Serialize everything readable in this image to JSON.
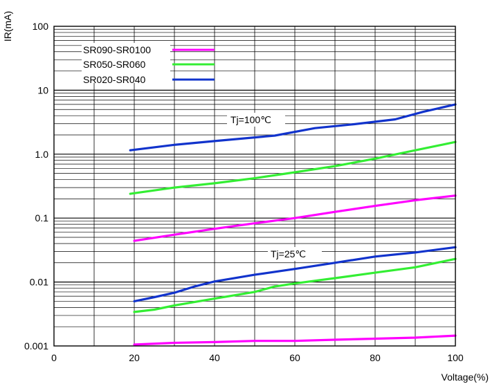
{
  "chart_data": {
    "type": "line",
    "xlabel": "Voltage(%)",
    "ylabel": "IR(mA)",
    "xlim": [
      0,
      100
    ],
    "ylim": [
      0.001,
      100
    ],
    "yscale": "log",
    "grid": true,
    "x_ticks": [
      "0",
      "20",
      "40",
      "60",
      "80",
      "100"
    ],
    "y_ticks": [
      "0.001",
      "0.01",
      "0.1",
      "1.0",
      "10",
      "100"
    ],
    "legend_placement": "top-left",
    "legend": [
      {
        "name": "SR090-SR0100",
        "color": "#ff00ff"
      },
      {
        "name": "SR050-SR060",
        "color": "#33ee33"
      },
      {
        "name": "SR020-SR040",
        "color": "#1133cc"
      }
    ],
    "annotations": [
      "Tj=100℃",
      "Tj=25℃"
    ],
    "series": [
      {
        "legend_index": 2,
        "group": "Tj=100℃",
        "x": [
          19,
          30,
          40,
          55,
          65,
          75,
          85,
          92,
          100
        ],
        "y": [
          1.15,
          1.4,
          1.6,
          1.95,
          2.55,
          2.95,
          3.5,
          4.6,
          6.0
        ]
      },
      {
        "legend_index": 1,
        "group": "Tj=100℃",
        "x": [
          19,
          30,
          40,
          50,
          60,
          70,
          80,
          90,
          100
        ],
        "y": [
          0.24,
          0.3,
          0.35,
          0.42,
          0.52,
          0.65,
          0.85,
          1.15,
          1.55
        ]
      },
      {
        "legend_index": 0,
        "group": "Tj=100℃",
        "x": [
          20,
          30,
          40,
          50,
          60,
          70,
          80,
          90,
          100
        ],
        "y": [
          0.044,
          0.055,
          0.068,
          0.083,
          0.1,
          0.125,
          0.155,
          0.19,
          0.225
        ]
      },
      {
        "legend_index": 2,
        "group": "Tj=25℃",
        "x": [
          20,
          25,
          30,
          35,
          40,
          50,
          60,
          70,
          80,
          90,
          100
        ],
        "y": [
          0.005,
          0.0058,
          0.0068,
          0.0085,
          0.0102,
          0.013,
          0.016,
          0.02,
          0.025,
          0.029,
          0.035
        ]
      },
      {
        "legend_index": 1,
        "group": "Tj=25℃",
        "x": [
          20,
          25,
          30,
          40,
          50,
          55,
          60,
          70,
          80,
          90,
          100
        ],
        "y": [
          0.0034,
          0.0037,
          0.0043,
          0.0055,
          0.007,
          0.0085,
          0.0095,
          0.0115,
          0.014,
          0.017,
          0.023
        ]
      },
      {
        "legend_index": 0,
        "group": "Tj=25℃",
        "x": [
          20,
          30,
          40,
          50,
          60,
          70,
          80,
          90,
          100
        ],
        "y": [
          0.00105,
          0.00112,
          0.00115,
          0.0012,
          0.0012,
          0.00125,
          0.0013,
          0.00135,
          0.00145
        ]
      }
    ]
  }
}
